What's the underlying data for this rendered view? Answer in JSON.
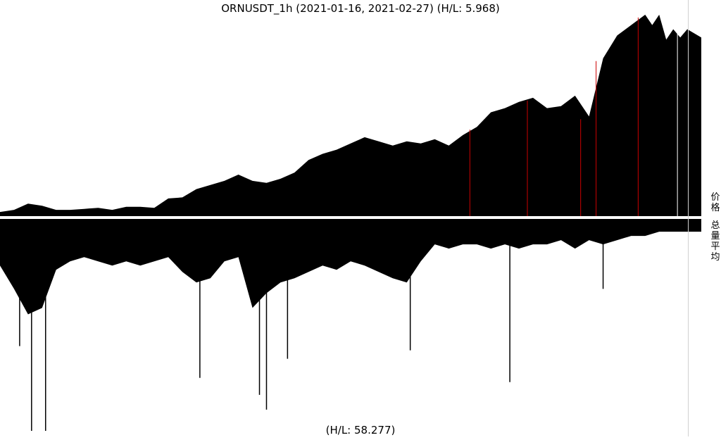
{
  "chart_data": {
    "type": "area",
    "title": "ORNUSDT_1h (2021-01-16, 2021-02-27) (H/L: 5.968)",
    "bottom_label": "(H/L: 58.277)",
    "x_range": [
      "2021-01-16",
      "2021-02-27"
    ],
    "hl_price": 5.968,
    "hl_volume": 58.277,
    "panels": [
      {
        "name": "价格",
        "series": [
          {
            "name": "价格",
            "x": [
              0.0,
              0.02,
              0.04,
              0.06,
              0.08,
              0.1,
              0.12,
              0.14,
              0.16,
              0.18,
              0.2,
              0.22,
              0.24,
              0.26,
              0.28,
              0.3,
              0.32,
              0.34,
              0.36,
              0.38,
              0.4,
              0.42,
              0.44,
              0.46,
              0.48,
              0.5,
              0.52,
              0.54,
              0.56,
              0.58,
              0.6,
              0.62,
              0.64,
              0.66,
              0.68,
              0.7,
              0.72,
              0.74,
              0.76,
              0.78,
              0.8,
              0.82,
              0.84,
              0.86,
              0.88,
              0.9,
              0.92,
              0.93,
              0.94,
              0.95,
              0.96,
              0.97,
              0.98,
              1.0
            ],
            "values": [
              0.02,
              0.03,
              0.06,
              0.05,
              0.03,
              0.03,
              0.035,
              0.04,
              0.03,
              0.045,
              0.045,
              0.04,
              0.085,
              0.09,
              0.13,
              0.15,
              0.17,
              0.2,
              0.17,
              0.16,
              0.18,
              0.21,
              0.27,
              0.3,
              0.32,
              0.35,
              0.38,
              0.36,
              0.34,
              0.36,
              0.35,
              0.37,
              0.34,
              0.39,
              0.43,
              0.5,
              0.52,
              0.55,
              0.57,
              0.52,
              0.53,
              0.58,
              0.48,
              0.76,
              0.87,
              0.92,
              0.97,
              0.92,
              0.97,
              0.85,
              0.9,
              0.86,
              0.9,
              0.86
            ]
          }
        ]
      },
      {
        "name": "总量平均",
        "series": [
          {
            "name": "总量平均",
            "x": [
              0.0,
              0.02,
              0.04,
              0.06,
              0.08,
              0.1,
              0.12,
              0.14,
              0.16,
              0.18,
              0.2,
              0.22,
              0.24,
              0.26,
              0.28,
              0.3,
              0.32,
              0.34,
              0.36,
              0.38,
              0.4,
              0.42,
              0.44,
              0.46,
              0.48,
              0.5,
              0.52,
              0.54,
              0.56,
              0.58,
              0.6,
              0.62,
              0.64,
              0.66,
              0.68,
              0.7,
              0.72,
              0.74,
              0.76,
              0.78,
              0.8,
              0.82,
              0.84,
              0.86,
              0.88,
              0.9,
              0.92,
              0.94,
              0.96,
              0.98,
              1.0
            ],
            "values": [
              0.22,
              0.33,
              0.45,
              0.42,
              0.24,
              0.2,
              0.18,
              0.2,
              0.22,
              0.2,
              0.22,
              0.2,
              0.18,
              0.25,
              0.3,
              0.28,
              0.2,
              0.18,
              0.42,
              0.35,
              0.3,
              0.28,
              0.25,
              0.22,
              0.24,
              0.2,
              0.22,
              0.25,
              0.28,
              0.3,
              0.2,
              0.12,
              0.14,
              0.12,
              0.12,
              0.14,
              0.12,
              0.14,
              0.12,
              0.12,
              0.1,
              0.14,
              0.1,
              0.12,
              0.1,
              0.08,
              0.08,
              0.06,
              0.06,
              0.06,
              0.06
            ]
          }
        ]
      }
    ],
    "spikes": [
      {
        "x": 0.045,
        "value": 1.0
      },
      {
        "x": 0.065,
        "value": 1.0
      },
      {
        "x": 0.38,
        "value": 0.9
      },
      {
        "x": 0.585,
        "value": 0.62
      },
      {
        "x": 0.727,
        "value": 0.77
      },
      {
        "x": 0.028,
        "value": 0.6
      },
      {
        "x": 0.285,
        "value": 0.75
      },
      {
        "x": 0.37,
        "value": 0.83
      },
      {
        "x": 0.41,
        "value": 0.66
      },
      {
        "x": 0.86,
        "value": 0.33
      }
    ],
    "red_markers": [
      0.67,
      0.752,
      0.828,
      0.85,
      0.91
    ],
    "white_marker": 0.966,
    "colors": {
      "fill": "#000000",
      "marker": "#cc0000",
      "background": "#ffffff",
      "axis": "#d0d0d0"
    },
    "grid": false,
    "legend": "none"
  }
}
